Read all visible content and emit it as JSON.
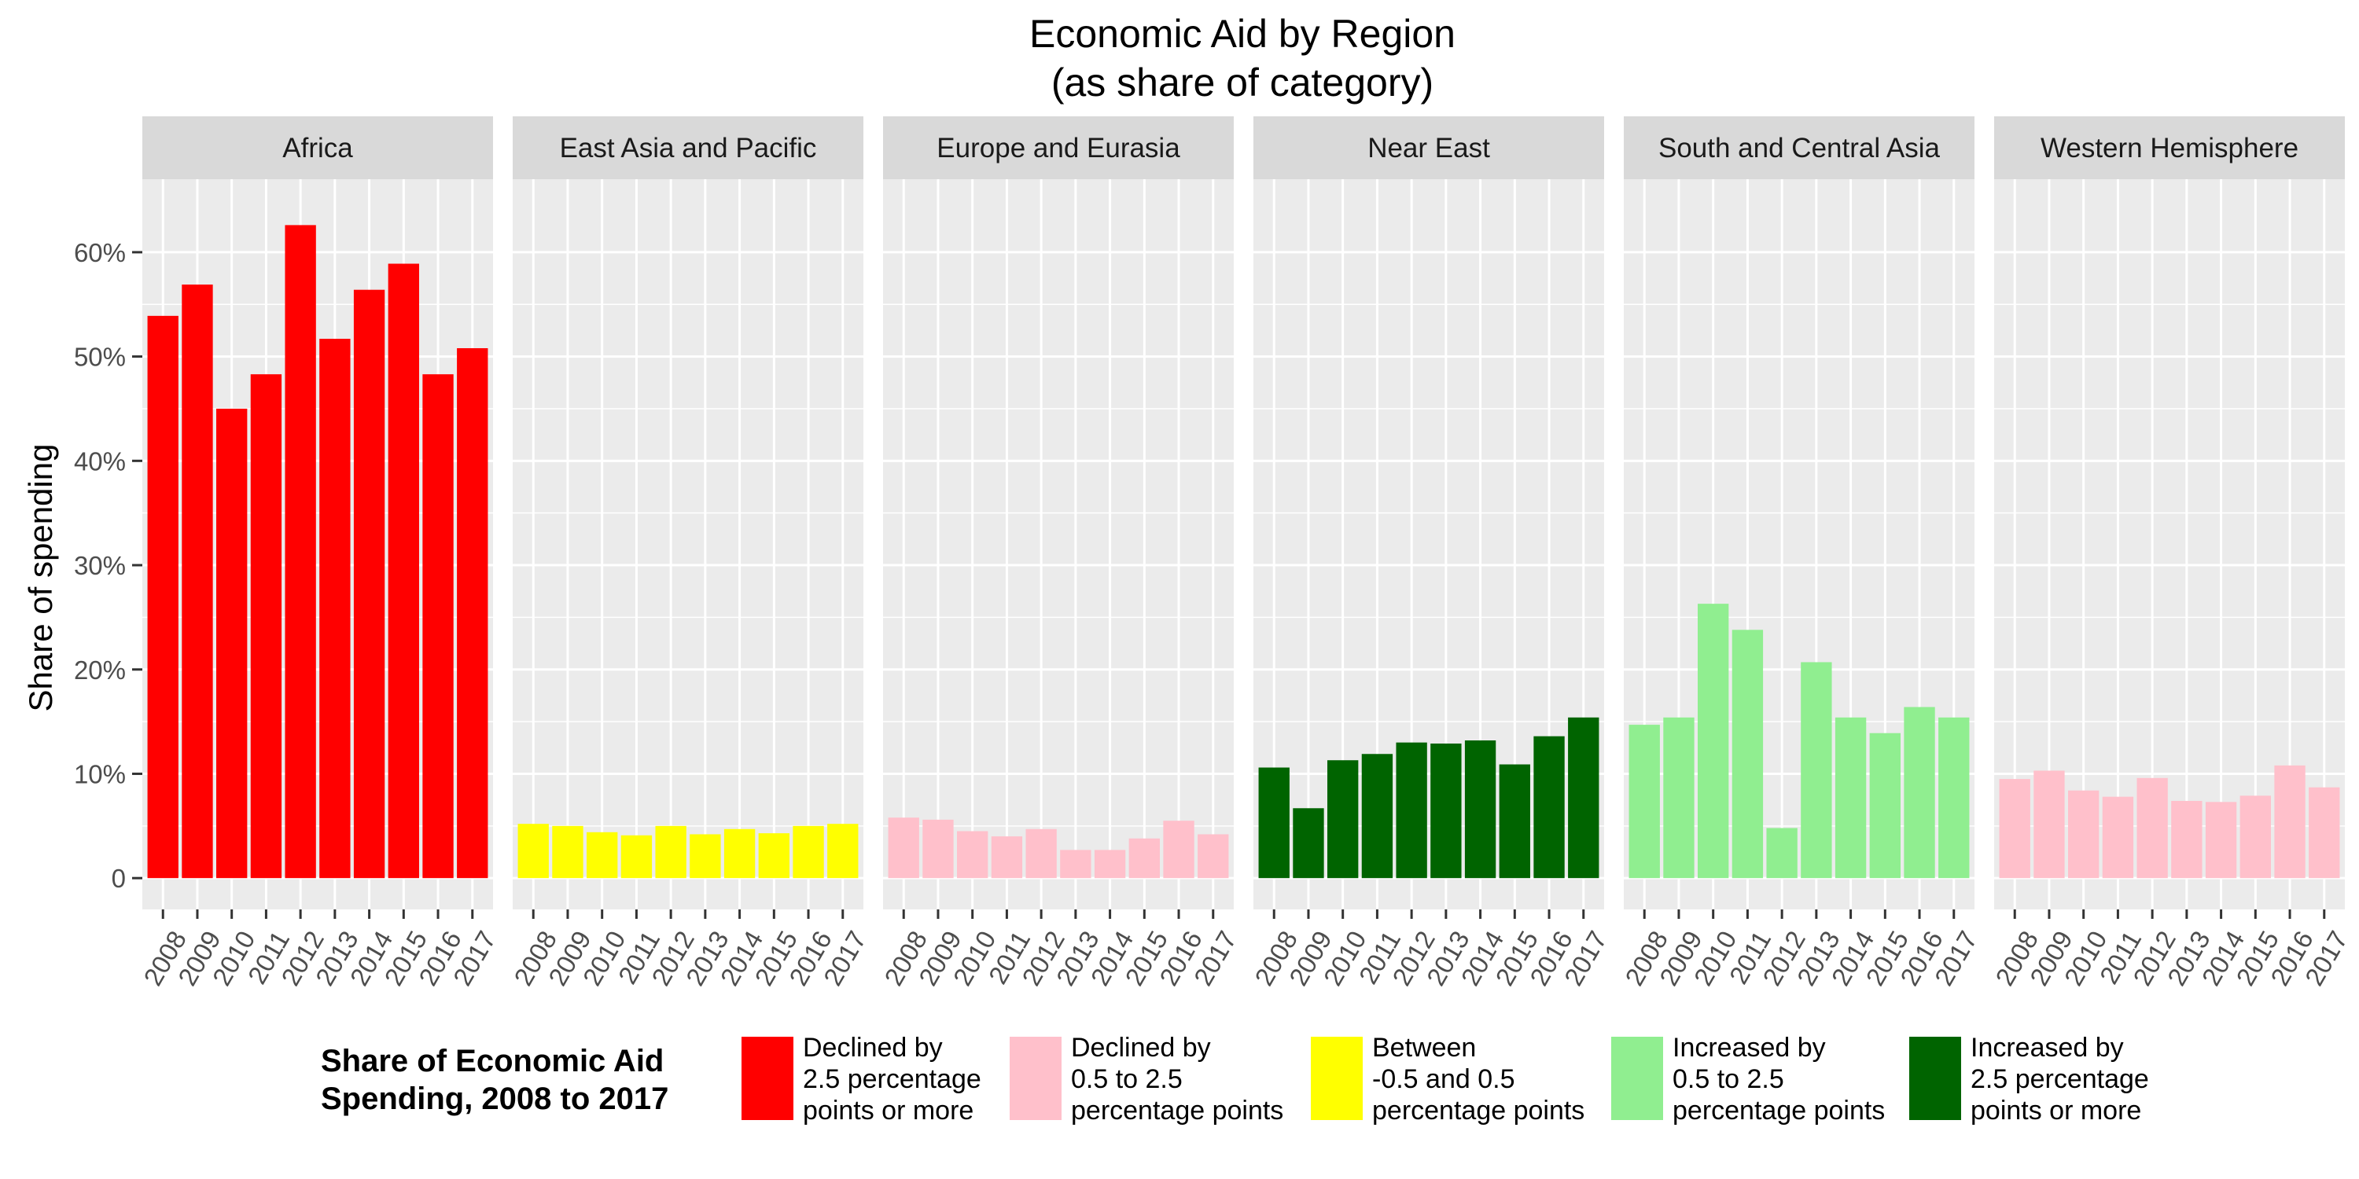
{
  "chart_data": {
    "type": "bar",
    "title": "Economic Aid by Region",
    "subtitle": "(as share of category)",
    "ylabel": "Share of spending",
    "xlabel": "",
    "ylim": [
      -0.03,
      0.67
    ],
    "yticks": [
      0,
      0.1,
      0.2,
      0.3,
      0.4,
      0.5,
      0.6
    ],
    "ytick_labels": [
      "0",
      "10%",
      "20%",
      "30%",
      "40%",
      "50%",
      "60%"
    ],
    "categories": [
      "2008",
      "2009",
      "2010",
      "2011",
      "2012",
      "2013",
      "2014",
      "2015",
      "2016",
      "2017"
    ],
    "grid": true,
    "legend_position": "bottom",
    "panels": [
      {
        "name": "Africa",
        "change_class": "declined_2_5_plus",
        "values": [
          0.539,
          0.569,
          0.45,
          0.483,
          0.626,
          0.517,
          0.564,
          0.589,
          0.483,
          0.508
        ]
      },
      {
        "name": "East Asia and Pacific",
        "change_class": "between",
        "values": [
          0.052,
          0.05,
          0.044,
          0.041,
          0.05,
          0.042,
          0.047,
          0.043,
          0.05,
          0.052
        ]
      },
      {
        "name": "Europe and Eurasia",
        "change_class": "declined_0_5_2_5",
        "values": [
          0.058,
          0.056,
          0.045,
          0.04,
          0.047,
          0.027,
          0.027,
          0.038,
          0.055,
          0.042
        ]
      },
      {
        "name": "Near East",
        "change_class": "increased_2_5_plus",
        "values": [
          0.106,
          0.067,
          0.113,
          0.119,
          0.13,
          0.129,
          0.132,
          0.109,
          0.136,
          0.154
        ]
      },
      {
        "name": "South and Central Asia",
        "change_class": "increased_0_5_2_5",
        "values": [
          0.147,
          0.154,
          0.263,
          0.238,
          0.048,
          0.207,
          0.154,
          0.139,
          0.164,
          0.154
        ]
      },
      {
        "name": "Western Hemisphere",
        "change_class": "declined_0_5_2_5",
        "values": [
          0.095,
          0.103,
          0.084,
          0.078,
          0.096,
          0.074,
          0.073,
          0.079,
          0.108,
          0.087
        ]
      }
    ],
    "legend": {
      "title_lines": [
        "Share of Economic Aid",
        "Spending, 2008 to 2017"
      ],
      "entries": [
        {
          "key": "declined_2_5_plus",
          "color": "#FF0000",
          "lines": [
            "Declined by",
            "2.5 percentage",
            "points or more"
          ]
        },
        {
          "key": "declined_0_5_2_5",
          "color": "#FFC0CB",
          "lines": [
            "Declined by",
            "0.5 to 2.5",
            "percentage points"
          ]
        },
        {
          "key": "between",
          "color": "#FFFF00",
          "lines": [
            "Between",
            "-0.5 and 0.5",
            "percentage points"
          ]
        },
        {
          "key": "increased_0_5_2_5",
          "color": "#90EE90",
          "lines": [
            "Increased by",
            "0.5 to 2.5",
            "percentage points"
          ]
        },
        {
          "key": "increased_2_5_plus",
          "color": "#006400",
          "lines": [
            "Increased by",
            "2.5 percentage",
            "points or more"
          ]
        }
      ]
    },
    "colors": {
      "panel_background": "#EBEBEB",
      "strip_background": "#D9D9D9",
      "grid": "#FFFFFF",
      "tick": "#333333",
      "tick_text": "#4D4D4D"
    }
  }
}
